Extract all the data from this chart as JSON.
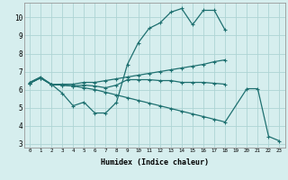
{
  "title": "",
  "xlabel": "Humidex (Indice chaleur)",
  "x_ticks": [
    0,
    1,
    2,
    3,
    4,
    5,
    6,
    7,
    8,
    9,
    10,
    11,
    12,
    13,
    14,
    15,
    16,
    17,
    18,
    19,
    20,
    21,
    22,
    23
  ],
  "xlim": [
    -0.5,
    23.5
  ],
  "ylim": [
    2.8,
    10.8
  ],
  "yticks": [
    3,
    4,
    5,
    6,
    7,
    8,
    9,
    10
  ],
  "bg_color": "#d6eeee",
  "grid_color": "#aed4d4",
  "line_color": "#1e7070",
  "line1_x": [
    0,
    1,
    2,
    3,
    4,
    5,
    6,
    7,
    8,
    9,
    10,
    11,
    12,
    13,
    14,
    15,
    16,
    17,
    18
  ],
  "line1_y": [
    6.4,
    6.7,
    6.3,
    5.8,
    5.1,
    5.3,
    4.7,
    4.7,
    5.3,
    7.4,
    8.6,
    9.4,
    9.7,
    10.3,
    10.5,
    9.6,
    10.4,
    10.4,
    9.3
  ],
  "line2_x": [
    0,
    1,
    2,
    3,
    4,
    5,
    6,
    7,
    8,
    9,
    10,
    11,
    12,
    13,
    14,
    15,
    16,
    17,
    18
  ],
  "line2_y": [
    6.35,
    6.65,
    6.28,
    6.3,
    6.3,
    6.4,
    6.4,
    6.5,
    6.6,
    6.7,
    6.8,
    6.9,
    7.0,
    7.1,
    7.2,
    7.3,
    7.4,
    7.55,
    7.65
  ],
  "line3_x": [
    0,
    1,
    2,
    3,
    4,
    5,
    6,
    7,
    8,
    9,
    10,
    11,
    12,
    13,
    14,
    15,
    16,
    17,
    18
  ],
  "line3_y": [
    6.35,
    6.65,
    6.28,
    6.25,
    6.2,
    6.25,
    6.2,
    6.1,
    6.25,
    6.55,
    6.55,
    6.55,
    6.5,
    6.5,
    6.4,
    6.4,
    6.4,
    6.35,
    6.3
  ],
  "line4_x": [
    0,
    1,
    2,
    3,
    4,
    5,
    6,
    7,
    8,
    9,
    10,
    11,
    12,
    13,
    14,
    15,
    16,
    17,
    18,
    20,
    21,
    22,
    23
  ],
  "line4_y": [
    6.35,
    6.65,
    6.28,
    6.25,
    6.2,
    6.1,
    6.0,
    5.85,
    5.7,
    5.55,
    5.4,
    5.25,
    5.1,
    4.95,
    4.8,
    4.65,
    4.5,
    4.35,
    4.2,
    6.05,
    6.05,
    3.4,
    3.15
  ]
}
